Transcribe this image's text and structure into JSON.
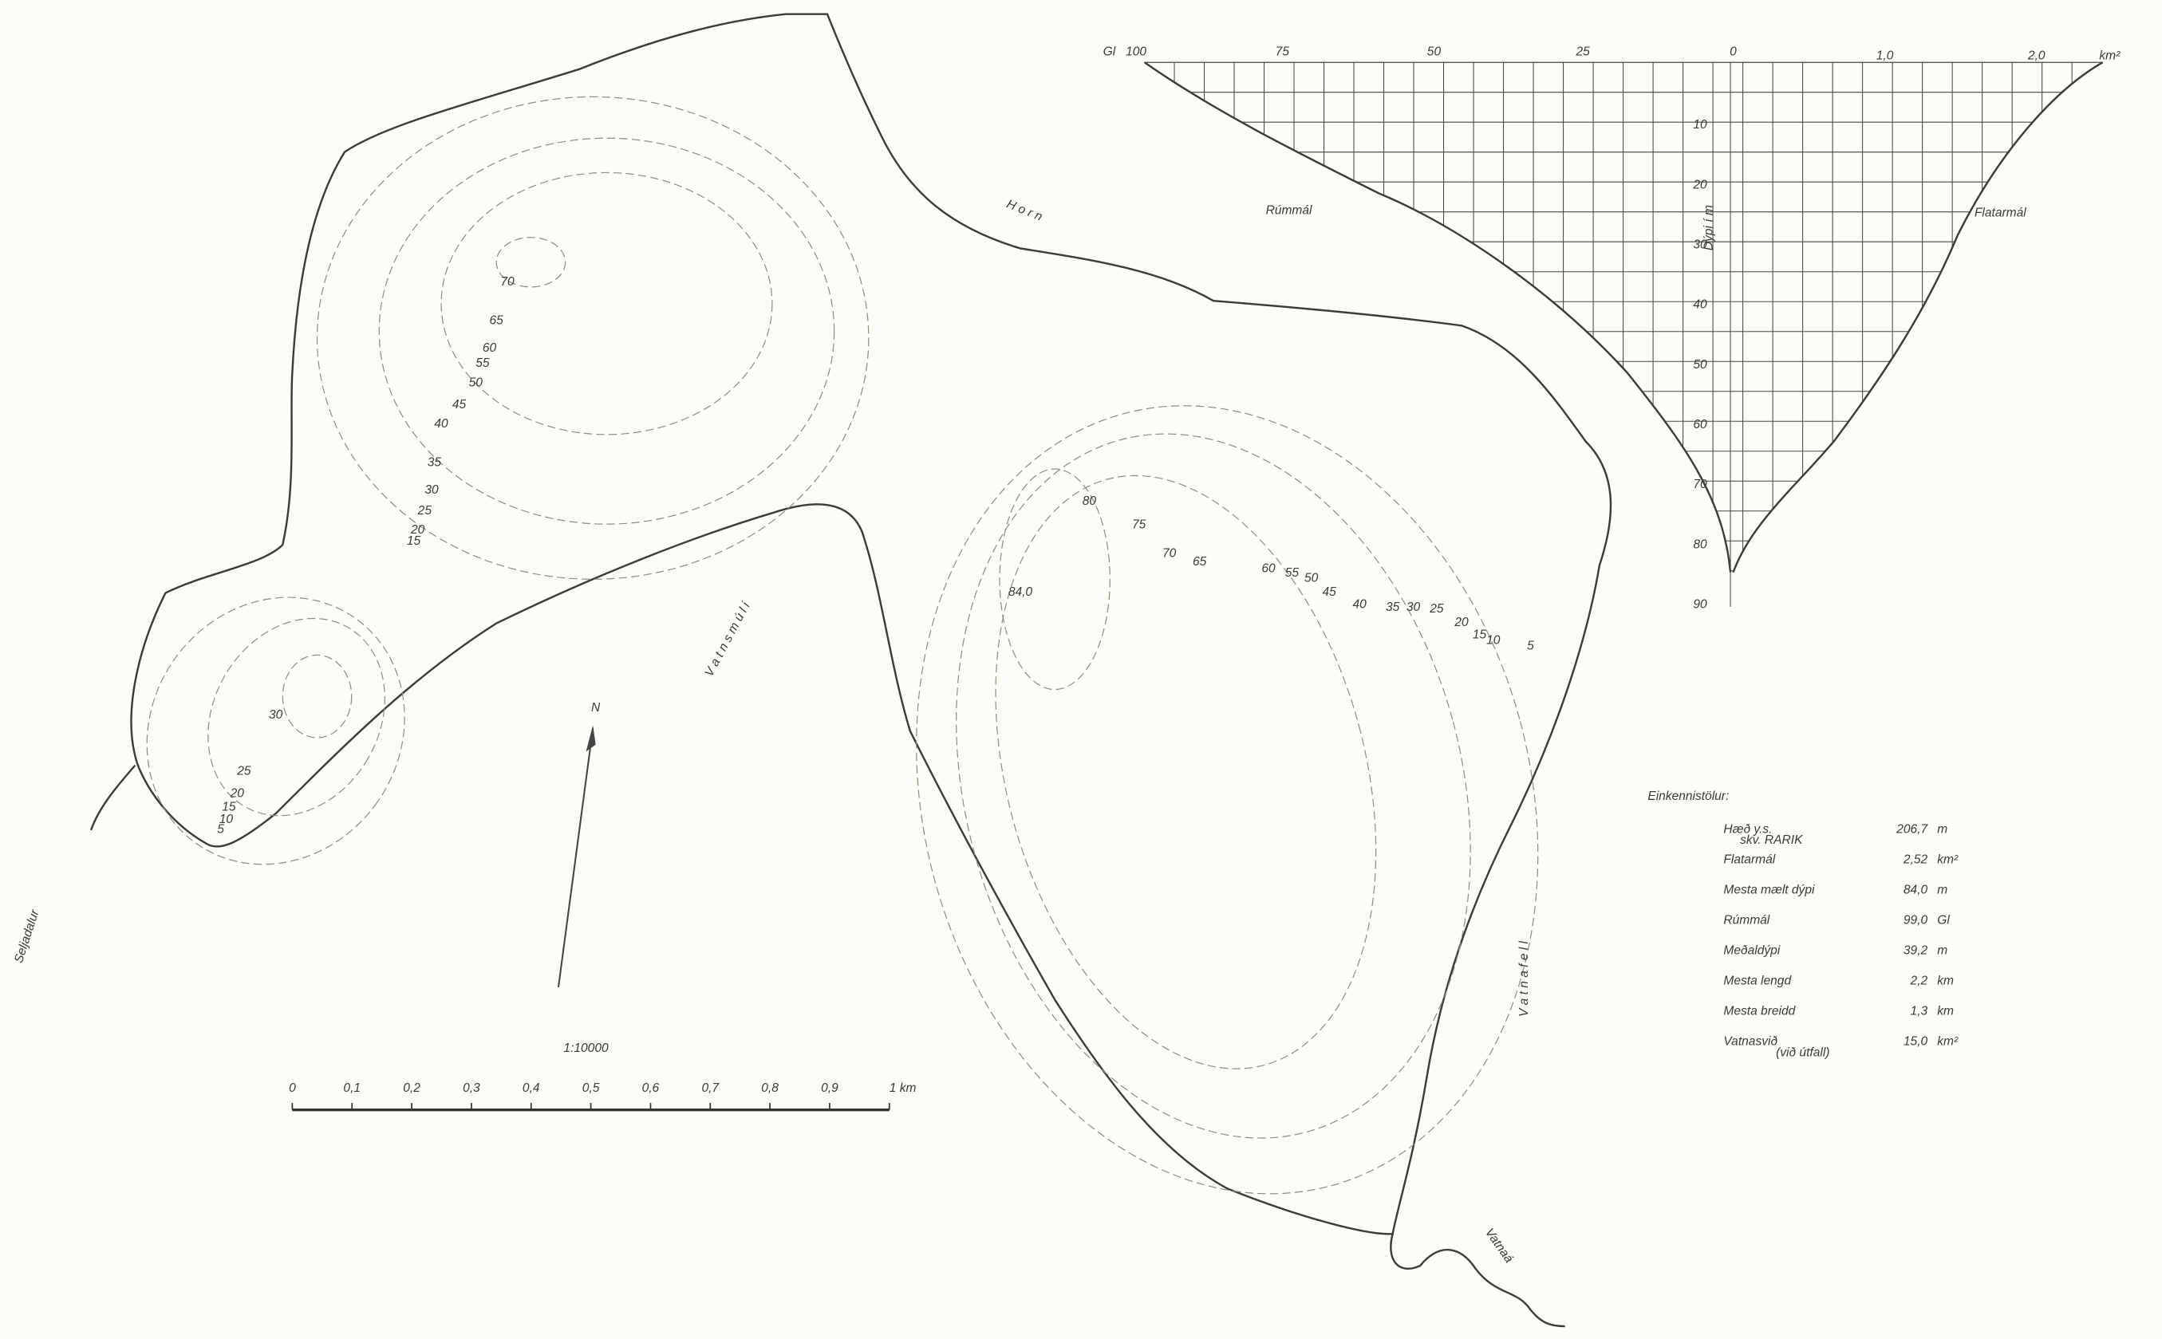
{
  "places": {
    "horn": "H o r n",
    "vatnsmuli": "V a t n s m ú l i",
    "seljadalur": "Seljadalur",
    "vatnafell": "V a t n a f e l l",
    "vatnaa": "Vatnaá"
  },
  "contour_labels": [
    "70",
    "65",
    "60",
    "55",
    "50",
    "45",
    "40",
    "35",
    "30",
    "25",
    "20",
    "15",
    "80",
    "75",
    "70",
    "65",
    "60",
    "55",
    "50",
    "45",
    "40",
    "35",
    "30",
    "25",
    "20",
    "15",
    "10",
    "5",
    "84,0",
    "30",
    "25",
    "20",
    "15",
    "10",
    "5"
  ],
  "graph": {
    "volume_label": "Rúmmál",
    "area_label": "Flatarmál",
    "depth_label": "Dýpi í m",
    "volume_unit": "Gl",
    "volume_ticks": [
      "100",
      "75",
      "50",
      "25",
      "0"
    ],
    "area_ticks": [
      "1,0",
      "2,0"
    ],
    "area_unit": "km²",
    "depth_ticks": [
      "10",
      "20",
      "30",
      "40",
      "50",
      "60",
      "70",
      "80",
      "90"
    ]
  },
  "scale": {
    "ratio": "1:10000",
    "ticks": [
      "0",
      "0,1",
      "0,2",
      "0,3",
      "0,4",
      "0,5",
      "0,6",
      "0,7",
      "0,8",
      "0,9",
      "1 km"
    ]
  },
  "north": "N",
  "stats": {
    "title": "Einkennistölur:",
    "rows": [
      {
        "label": "Hæð y.s.",
        "note": "skv. RARIK",
        "value": "206,7",
        "unit": "m"
      },
      {
        "label": "Flatarmál",
        "value": "2,52",
        "unit": "km²"
      },
      {
        "label": "Mesta mælt dýpi",
        "value": "84,0",
        "unit": "m"
      },
      {
        "label": "Rúmmál",
        "value": "99,0",
        "unit": "Gl"
      },
      {
        "label": "Meðaldýpi",
        "value": "39,2",
        "unit": "m"
      },
      {
        "label": "Mesta lengd",
        "value": "2,2",
        "unit": "km"
      },
      {
        "label": "Mesta breidd",
        "value": "1,3",
        "unit": "km"
      },
      {
        "label": "Vatnasvið",
        "note": "(við útfall)",
        "value": "15,0",
        "unit": "km²"
      }
    ]
  }
}
